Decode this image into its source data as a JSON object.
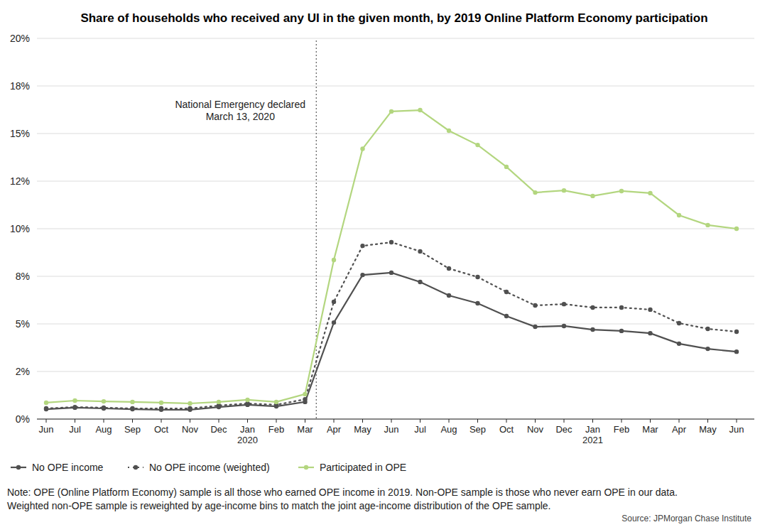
{
  "chart_data": {
    "type": "line",
    "title": "Share of households who received any UI in the given month, by 2019 Online Platform Economy participation",
    "categories": [
      "Jun",
      "Jul",
      "Aug",
      "Sep",
      "Oct",
      "Nov",
      "Dec",
      "Jan",
      "Feb",
      "Mar",
      "Apr",
      "May",
      "Jun",
      "Jul",
      "Aug",
      "Sep",
      "Oct",
      "Nov",
      "Dec",
      "Jan",
      "Feb",
      "Mar",
      "Apr",
      "May",
      "Jun"
    ],
    "year_labels": [
      {
        "label": "2020",
        "at": 7
      },
      {
        "label": "2021",
        "at": 19
      }
    ],
    "annotations": [
      {
        "lines": [
          "National Emergency declared",
          "March 13, 2020"
        ],
        "x": 9.39
      }
    ],
    "ylim": [
      0,
      20
    ],
    "yticks": [
      {
        "value": 0,
        "label": "0%"
      },
      {
        "value": 2.5,
        "label": "2%"
      },
      {
        "value": 5,
        "label": "5%"
      },
      {
        "value": 7.5,
        "label": "8%"
      },
      {
        "value": 10,
        "label": "10%"
      },
      {
        "value": 12.5,
        "label": "12%"
      },
      {
        "value": 15,
        "label": "15%"
      },
      {
        "value": 17.5,
        "label": "18%"
      },
      {
        "value": 20,
        "label": "20%"
      }
    ],
    "grid": true,
    "legend": "bottom",
    "series": [
      {
        "name": "No OPE income",
        "color": "#505050",
        "marker": "circle",
        "line_style": "solid",
        "values": [
          0.52,
          0.6,
          0.56,
          0.52,
          0.49,
          0.49,
          0.63,
          0.75,
          0.67,
          0.9,
          5.07,
          7.57,
          7.69,
          7.2,
          6.49,
          6.08,
          5.41,
          4.85,
          4.89,
          4.7,
          4.63,
          4.51,
          3.96,
          3.69,
          3.54
        ]
      },
      {
        "name": "No OPE income (weighted)",
        "color": "#505050",
        "marker": "circle",
        "line_style": "dotted",
        "values": [
          0.56,
          0.63,
          0.6,
          0.56,
          0.56,
          0.56,
          0.71,
          0.82,
          0.75,
          1.04,
          6.16,
          9.1,
          9.29,
          8.81,
          7.91,
          7.46,
          6.68,
          5.97,
          6.04,
          5.86,
          5.86,
          5.75,
          5.04,
          4.74,
          4.59
        ]
      },
      {
        "name": "Participated in OPE",
        "color": "#b3d67f",
        "marker": "circle",
        "line_style": "solid",
        "values": [
          0.86,
          0.97,
          0.93,
          0.9,
          0.86,
          0.82,
          0.9,
          1.01,
          0.9,
          1.31,
          8.36,
          14.2,
          16.16,
          16.23,
          15.15,
          14.4,
          13.25,
          11.9,
          12.01,
          11.72,
          11.98,
          11.87,
          10.71,
          10.19,
          10.0
        ]
      }
    ],
    "notes": [
      "Note: OPE (Online Platform Economy) sample is all those who earned OPE income in 2019. Non-OPE sample is those who never earn OPE in our data.",
      "Weighted non-OPE sample is reweighted by age-income bins to match the joint age-income distribution of the OPE sample."
    ],
    "source": "Source: JPMorgan Chase Institute"
  }
}
